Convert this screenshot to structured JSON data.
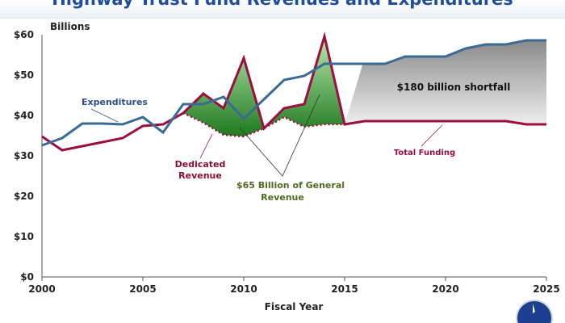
{
  "chart_data": {
    "type": "line",
    "title": "Highway Trust Fund Revenues and Expenditures",
    "xlabel": "Fiscal Year",
    "ylabel": "Billions",
    "xlim": [
      2000,
      2025
    ],
    "ylim": [
      0,
      60
    ],
    "x_ticks": [
      "2000",
      "2005",
      "2010",
      "2015",
      "2020",
      "2025"
    ],
    "y_ticks": [
      "$0",
      "$10",
      "$20",
      "$30",
      "$40",
      "$50",
      "$60"
    ],
    "grid": false,
    "x": [
      2000,
      2001,
      2002,
      2003,
      2004,
      2005,
      2006,
      2007,
      2008,
      2009,
      2010,
      2011,
      2012,
      2013,
      2014,
      2015,
      2016,
      2017,
      2018,
      2019,
      2020,
      2021,
      2022,
      2023,
      2024,
      2025
    ],
    "series": [
      {
        "name": "Expenditures",
        "color": "#3a6a96",
        "values": [
          32.6,
          34.4,
          38,
          38,
          37.8,
          39.6,
          35.8,
          42.8,
          42.8,
          44.6,
          39.2,
          44,
          48.8,
          49.8,
          52.8,
          52.8,
          52.8,
          52.8,
          54.6,
          54.6,
          54.6,
          56.6,
          57.6,
          57.6,
          58.6,
          58.6
        ]
      },
      {
        "name": "Total Funding",
        "color": "#9b0e3e",
        "values": [
          34.8,
          31.4,
          32.4,
          33.4,
          34.4,
          37.4,
          37.8,
          40.6,
          45.4,
          41.8,
          54.2,
          36.8,
          41.8,
          42.8,
          59.6,
          37.8,
          38.6,
          38.6,
          38.6,
          38.6,
          38.6,
          38.6,
          38.6,
          38.6,
          37.8,
          37.8
        ]
      },
      {
        "name": "Dedicated Revenue",
        "color": "#9b0e3e",
        "x": [
          2007,
          2008,
          2009,
          2010,
          2011,
          2012,
          2013,
          2014,
          2015
        ],
        "values": [
          40.6,
          38.2,
          35.2,
          34.8,
          36.8,
          39.6,
          37.2,
          37.8,
          37.8
        ]
      }
    ],
    "annotations": {
      "expenditures": "Expenditures",
      "dedicated": [
        "Dedicated",
        "Revenue"
      ],
      "general": [
        "$65 Billion of General",
        "Revenue"
      ],
      "shortfall": "$180 billion shortfall",
      "total": "Total Funding"
    },
    "colors": {
      "general_fill": "#3f9b3f",
      "shortfall_fill": "#9a9a9a"
    }
  }
}
